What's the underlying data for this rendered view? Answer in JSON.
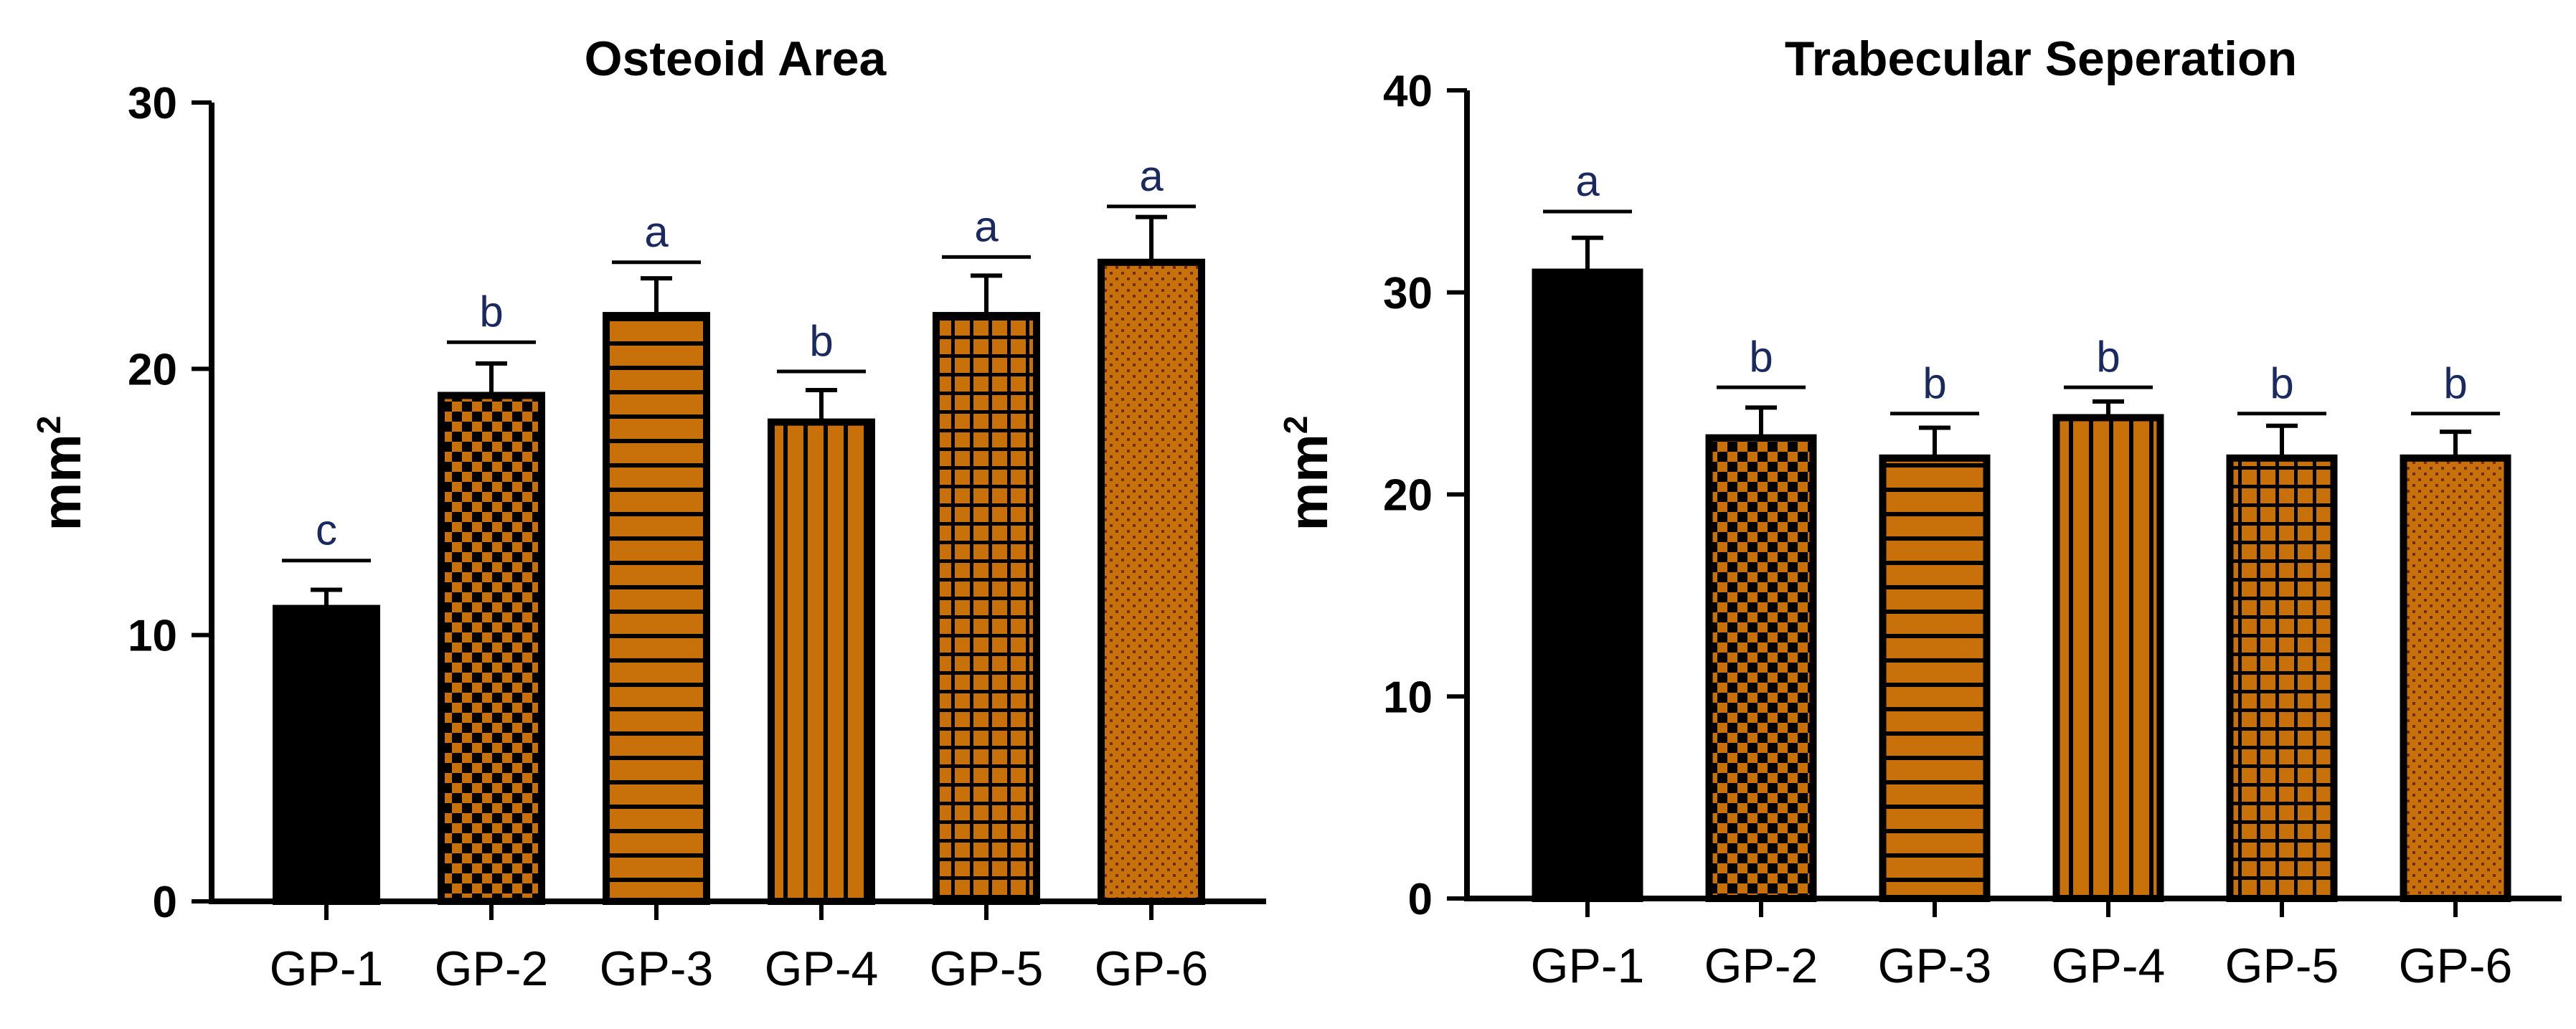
{
  "chart_data": [
    {
      "type": "bar",
      "title": "Osteoid Area",
      "ylabel": "mm",
      "ylabel_superscript": "2",
      "xlabel": "",
      "ylim": [
        0,
        30
      ],
      "yticks": [
        "0",
        "10",
        "20",
        "30"
      ],
      "ytick_values": [
        0,
        10,
        20,
        30
      ],
      "categories": [
        "GP-1",
        "GP-2",
        "GP-3",
        "GP-4",
        "GP-5",
        "GP-6"
      ],
      "values": [
        11,
        19,
        22,
        18,
        22,
        24
      ],
      "error": [
        0.7,
        1.2,
        1.4,
        1.2,
        1.5,
        1.7
      ],
      "significance": [
        "c",
        "b",
        "a",
        "b",
        "a",
        "a"
      ],
      "sig_line_levels": [
        12.8,
        21.0,
        24.0,
        19.9,
        24.2,
        26.1
      ],
      "patterns": [
        "solid",
        "checker",
        "hstripe",
        "vstripe",
        "grid",
        "dots"
      ]
    },
    {
      "type": "bar",
      "title": "Trabecular Seperation",
      "ylabel": "mm",
      "ylabel_superscript": "2",
      "xlabel": "",
      "ylim": [
        0,
        40
      ],
      "yticks": [
        "0",
        "10",
        "20",
        "30",
        "40"
      ],
      "ytick_values": [
        0,
        10,
        20,
        30,
        40
      ],
      "categories": [
        "GP-1",
        "GP-2",
        "GP-3",
        "GP-4",
        "GP-5",
        "GP-6"
      ],
      "values": [
        31,
        22.8,
        21.8,
        23.8,
        21.8,
        21.8
      ],
      "error": [
        1.7,
        1.5,
        1.5,
        0.8,
        1.6,
        1.3
      ],
      "significance": [
        "a",
        "b",
        "b",
        "b",
        "b",
        "b"
      ],
      "sig_line_levels": [
        34.0,
        25.3,
        24.0,
        25.3,
        24.0,
        24.0
      ],
      "patterns": [
        "solid",
        "checker",
        "hstripe",
        "vstripe",
        "grid",
        "dots"
      ]
    }
  ],
  "colors": {
    "bar_fill": "#c8700a",
    "bar_solid": "#000000",
    "pattern_ink": "#000000",
    "sig_letter": "#1a2a60"
  }
}
